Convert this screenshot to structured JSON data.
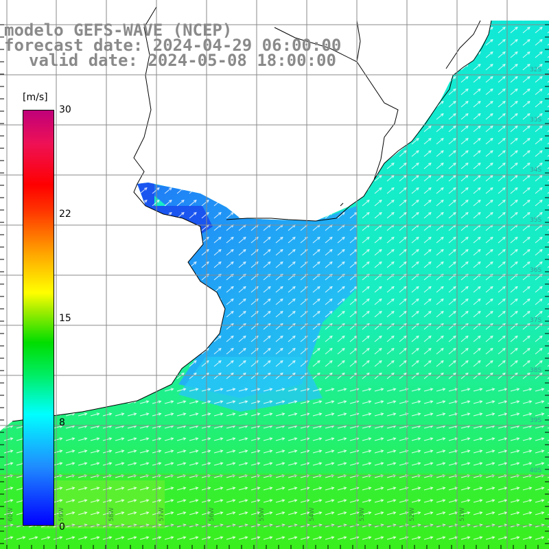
{
  "title": {
    "line1": "modelo GEFS-WAVE (NCEP)",
    "line2": "forecast date: 2024-04-29 06:00:00",
    "line3": "valid date: 2024-05-08 18:00:00"
  },
  "colorbar": {
    "unit": "[m/s]",
    "ticks": [
      "30",
      "22",
      "15",
      "8",
      "0"
    ],
    "tick_values": [
      30,
      22,
      15,
      8,
      0
    ],
    "range": [
      0,
      30
    ],
    "colors": [
      "#0000ff",
      "#1f8bff",
      "#00ffff",
      "#00dd00",
      "#ffff00",
      "#ff3300",
      "#c0007a"
    ]
  },
  "map": {
    "variable": "wind speed and direction",
    "lat_labels": [
      "32S",
      "33S",
      "34S",
      "35S",
      "36S",
      "37S",
      "38S",
      "39S",
      "40S"
    ],
    "lon_labels": [
      "60W",
      "59W",
      "58W",
      "57W",
      "56W",
      "55W",
      "54W",
      "53W",
      "52W",
      "51W"
    ],
    "land_color": "#ffffff",
    "coastline_color": "#000000",
    "grid_color": "#888888",
    "arrow_color": "#ffffff"
  }
}
